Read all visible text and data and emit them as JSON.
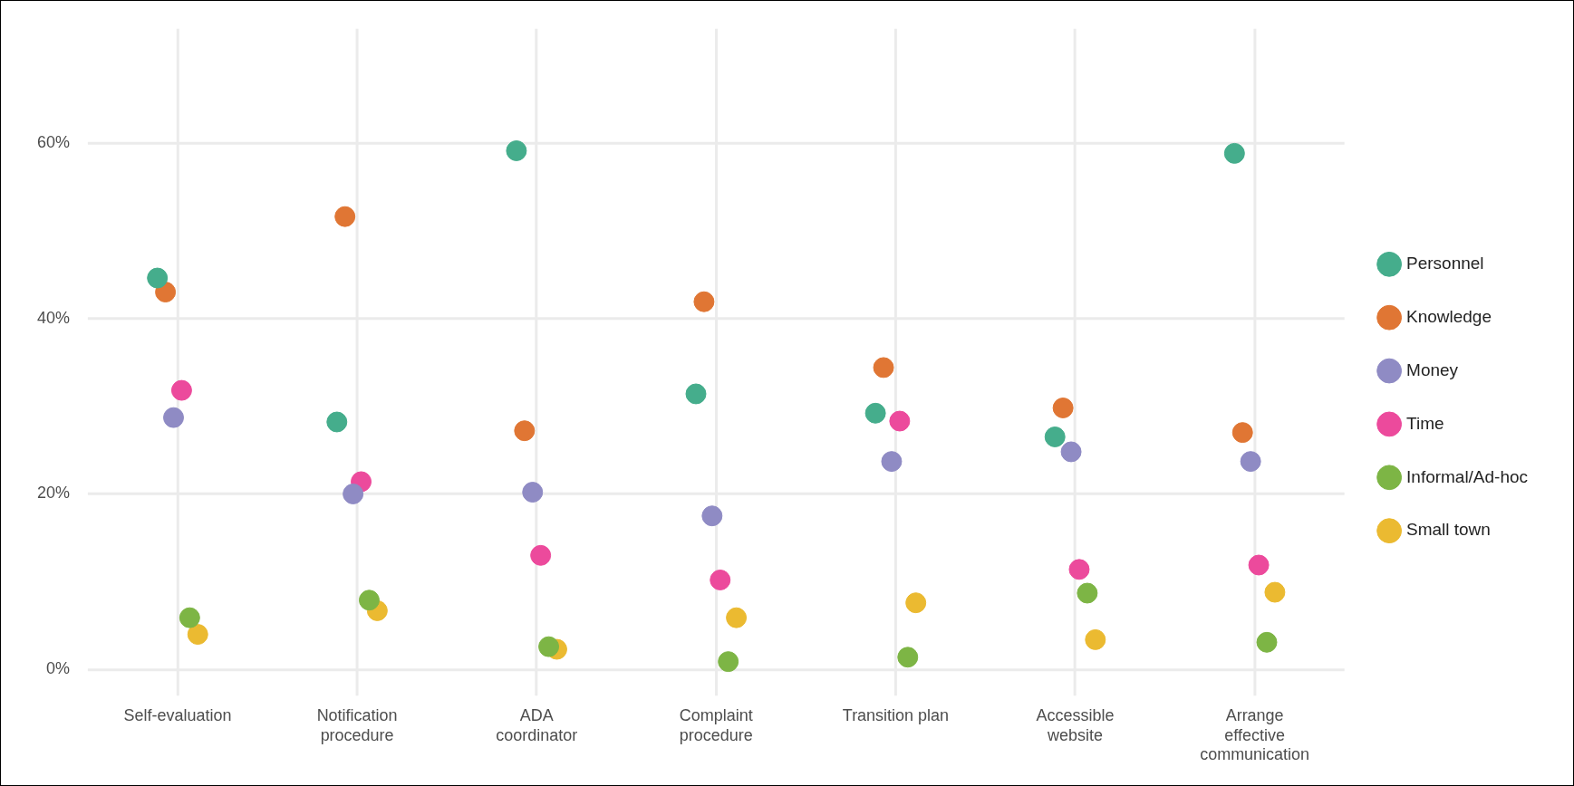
{
  "chart_data": {
    "type": "scatter",
    "categories": [
      "Self-evaluation",
      "Notification procedure",
      "ADA coordinator",
      "Complaint procedure",
      "Transition plan",
      "Accessible website",
      "Arrange effective communication"
    ],
    "series": [
      {
        "name": "Personnel",
        "color": "#45ad8c",
        "values": [
          44.6,
          28.2,
          59.1,
          31.4,
          29.2,
          26.5,
          58.8
        ]
      },
      {
        "name": "Knowledge",
        "color": "#e07634",
        "values": [
          43.0,
          51.6,
          27.2,
          41.9,
          34.4,
          29.8,
          27.0
        ]
      },
      {
        "name": "Money",
        "color": "#8f8bc4",
        "values": [
          28.7,
          20.0,
          20.2,
          17.5,
          23.7,
          24.8,
          23.7
        ]
      },
      {
        "name": "Time",
        "color": "#ec4a9c",
        "values": [
          31.8,
          21.4,
          13.0,
          10.2,
          28.3,
          11.4,
          11.9
        ]
      },
      {
        "name": "Informal/Ad-hoc",
        "color": "#7db545",
        "values": [
          5.9,
          7.9,
          2.6,
          0.9,
          1.4,
          8.7,
          3.1
        ]
      },
      {
        "name": "Small town",
        "color": "#ebba31",
        "values": [
          4.0,
          6.7,
          2.3,
          5.9,
          7.6,
          3.4,
          8.8
        ]
      }
    ],
    "ylim": [
      -3,
      73
    ],
    "yticks": [
      {
        "value": 0,
        "label": "0%"
      },
      {
        "value": 20,
        "label": "20%"
      },
      {
        "value": 40,
        "label": "40%"
      },
      {
        "value": 60,
        "label": "60%"
      }
    ],
    "grid": true,
    "legend": "right",
    "marker": "circle"
  }
}
